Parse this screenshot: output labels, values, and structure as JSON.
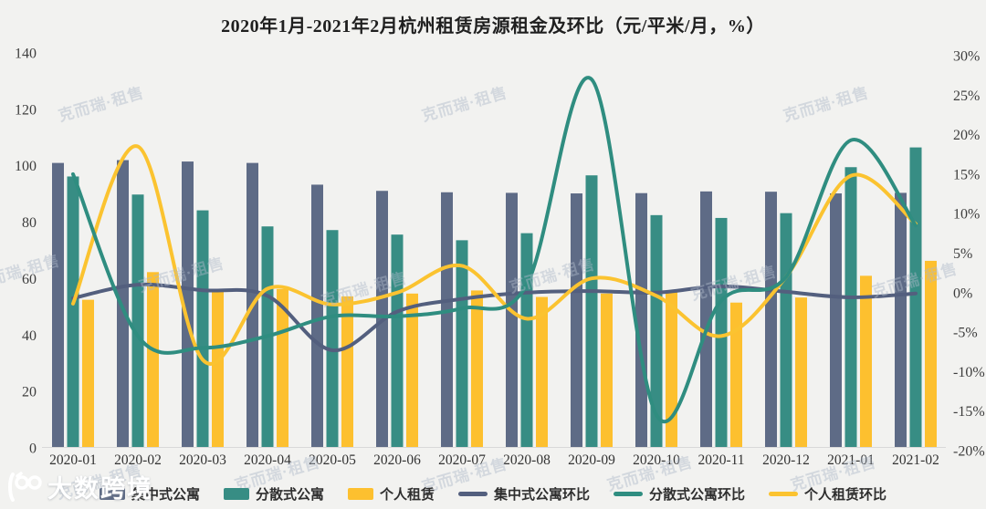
{
  "title": "2020年1月-2021年2月杭州租赁房源租金及环比（元/平米/月，%）",
  "watermark_text": "克而瑞·租售",
  "logo_text": "大数跨境",
  "colors": {
    "centralized_bar": "#5e6b86",
    "decentralized_bar": "#378d84",
    "individual_bar": "#fdc02f",
    "centralized_line": "#535f7e",
    "decentralized_line": "#2f8d80",
    "individual_line": "#fbc330",
    "background": "#f2f2f0",
    "axis_text": "#3d3d3d"
  },
  "chart_data": {
    "type": "bar+line combo, dual axis",
    "title": "2020年1月-2021年2月杭州租赁房源租金及环比（元/平米/月，%）",
    "categories": [
      "2020-01",
      "2020-02",
      "2020-03",
      "2020-04",
      "2020-05",
      "2020-06",
      "2020-07",
      "2020-08",
      "2020-09",
      "2020-10",
      "2020-11",
      "2020-12",
      "2021-01",
      "2021-02"
    ],
    "series": [
      {
        "name": "集中式公寓",
        "type": "bar",
        "axis": "left",
        "color": "#5e6b86",
        "values": [
          101,
          102,
          101.5,
          101,
          93.3,
          91.1,
          90.6,
          90.4,
          90.2,
          90.3,
          90.9,
          90.8,
          90.2,
          90.4
        ]
      },
      {
        "name": "分散式公寓",
        "type": "bar",
        "axis": "left",
        "color": "#378d84",
        "values": [
          96.2,
          89.8,
          84.2,
          78.5,
          77.2,
          75.6,
          73.6,
          76.1,
          96.6,
          82.5,
          81.5,
          83.2,
          99.5,
          106.5
        ]
      },
      {
        "name": "个人租赁",
        "type": "bar",
        "axis": "left",
        "color": "#fdc02f",
        "values": [
          52.5,
          62.3,
          56.4,
          56.3,
          53.7,
          54.7,
          55.8,
          53.5,
          54.7,
          55.3,
          51.5,
          53.3,
          61,
          66.3
        ]
      },
      {
        "name": "集中式公寓环比",
        "type": "line",
        "axis": "right",
        "color": "#535f7e",
        "values": [
          -0.7,
          1.0,
          0.3,
          -0.4,
          -7.3,
          -2.4,
          -0.8,
          0.0,
          0.2,
          0.0,
          0.8,
          0.1,
          -0.6,
          -0.1
        ]
      },
      {
        "name": "个人租赁环比",
        "type": "line",
        "axis": "right",
        "color": "#fbc330",
        "values": [
          -1.4,
          18.5,
          -8.5,
          0.5,
          -1.5,
          0.0,
          3.4,
          -3.3,
          1.8,
          -0.4,
          -5.5,
          2.0,
          14.8,
          8.7
        ]
      },
      {
        "name": "分散式公寓环比",
        "type": "line",
        "axis": "right",
        "color": "#2f8d80",
        "values": [
          15.0,
          -5.5,
          -7.0,
          -5.5,
          -3.0,
          -3.0,
          -2.0,
          1.0,
          27.0,
          -15.5,
          -1.0,
          2.0,
          19.3,
          8.5
        ]
      }
    ],
    "left_axis": {
      "ticks": [
        140,
        120,
        100,
        80,
        60,
        40,
        20,
        0
      ],
      "range": [
        0,
        140
      ]
    },
    "right_axis": {
      "ticks": [
        "30%",
        "25%",
        "20%",
        "15%",
        "10%",
        "5%",
        "0%",
        "-5%",
        "-10%",
        "-15%",
        "-20%"
      ],
      "range": [
        -20,
        30
      ]
    },
    "grid": false,
    "legend_position": "bottom",
    "legend": [
      {
        "label": "集中式公寓",
        "swatch": "bar",
        "color": "#5e6b86"
      },
      {
        "label": "分散式公寓",
        "swatch": "bar",
        "color": "#378d84"
      },
      {
        "label": "个人租赁",
        "swatch": "bar",
        "color": "#fdc02f"
      },
      {
        "label": "集中式公寓环比",
        "swatch": "line",
        "color": "#535f7e"
      },
      {
        "label": "分散式公寓环比",
        "swatch": "line",
        "color": "#2f8d80"
      },
      {
        "label": "个人租赁环比",
        "swatch": "line",
        "color": "#fbc330"
      }
    ]
  }
}
